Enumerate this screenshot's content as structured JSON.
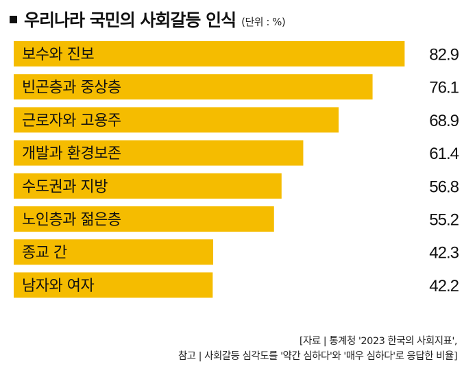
{
  "header": {
    "title": "우리나라 국민의 사회갈등 인식",
    "unit": "(단위 : %)"
  },
  "colors": {
    "bar": "#F5BC00",
    "text": "#111111"
  },
  "chart_data": {
    "type": "bar",
    "orientation": "horizontal",
    "title": "우리나라 국민의 사회갈등 인식",
    "unit": "(단위 : %)",
    "categories": [
      "보수와 진보",
      "빈곤층과 중상층",
      "근로자와 고용주",
      "개발과 환경보존",
      "수도권과 지방",
      "노인층과 젊은층",
      "종교 간",
      "남자와 여자"
    ],
    "values": [
      82.9,
      76.1,
      68.9,
      61.4,
      56.8,
      55.2,
      42.3,
      42.2
    ],
    "value_labels": [
      "82.9",
      "76.1",
      "68.9",
      "61.4",
      "56.8",
      "55.2",
      "42.3",
      "42.2"
    ],
    "xlim": [
      0,
      100
    ],
    "grid": false,
    "legend": "none"
  },
  "footer": {
    "line1": "[자료 | 통계청 '2023 한국의 사회지표',",
    "line2": "참고 | 사회갈등 심각도를 '약간 심하다'와 '매우 심하다'로 응답한 비율]"
  }
}
